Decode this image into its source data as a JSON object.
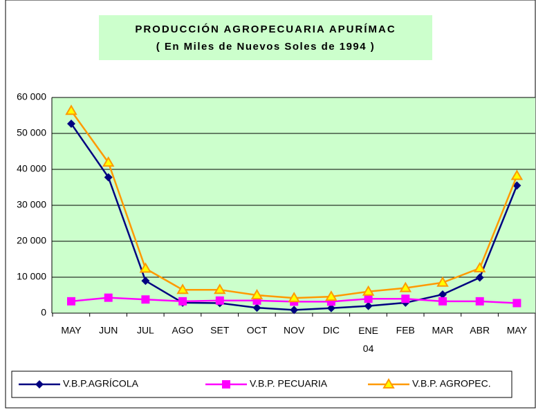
{
  "chart_data": {
    "type": "line",
    "title": "PRODUCCIÓN AGROPECUARIA  APURÍMAC",
    "subtitle": "( En Miles de Nuevos Soles de 1994 )",
    "categories": [
      "MAY",
      "JUN",
      "JUL",
      "AGO",
      "SET",
      "OCT",
      "NOV",
      "DIC",
      "ENE\n04",
      "FEB",
      "MAR",
      "ABR",
      "MAY"
    ],
    "series": [
      {
        "name": "V.B.P.AGRÍCOLA",
        "color": "#000080",
        "marker": "diamond",
        "values": [
          52700,
          37800,
          9000,
          2900,
          2800,
          1500,
          900,
          1400,
          2000,
          2900,
          5200,
          9900,
          35500
        ]
      },
      {
        "name": "V.B.P. PECUARIA",
        "color": "#ff00ff",
        "marker": "square",
        "values": [
          3300,
          4300,
          3800,
          3300,
          3500,
          3500,
          3200,
          3200,
          4000,
          4000,
          3300,
          3300,
          2800
        ]
      },
      {
        "name": "V.B.P. AGROPEC.",
        "color": "#ff9900",
        "marker": "triangle",
        "values": [
          56300,
          41900,
          12400,
          6500,
          6500,
          5000,
          4200,
          4600,
          6000,
          7000,
          8500,
          12500,
          38200
        ]
      }
    ],
    "ylim": [
      0,
      60000
    ],
    "yticks": [
      0,
      {
        "value": 10000,
        "label": "10 000"
      },
      {
        "value": 20000,
        "label": "20 000"
      },
      {
        "value": 30000,
        "label": "30 000"
      },
      {
        "value": 40000,
        "label": "40 000"
      },
      {
        "value": 50000,
        "label": "50 000"
      },
      {
        "value": 60000,
        "label": "60 000"
      }
    ],
    "grid": true,
    "legend": "bottom"
  }
}
